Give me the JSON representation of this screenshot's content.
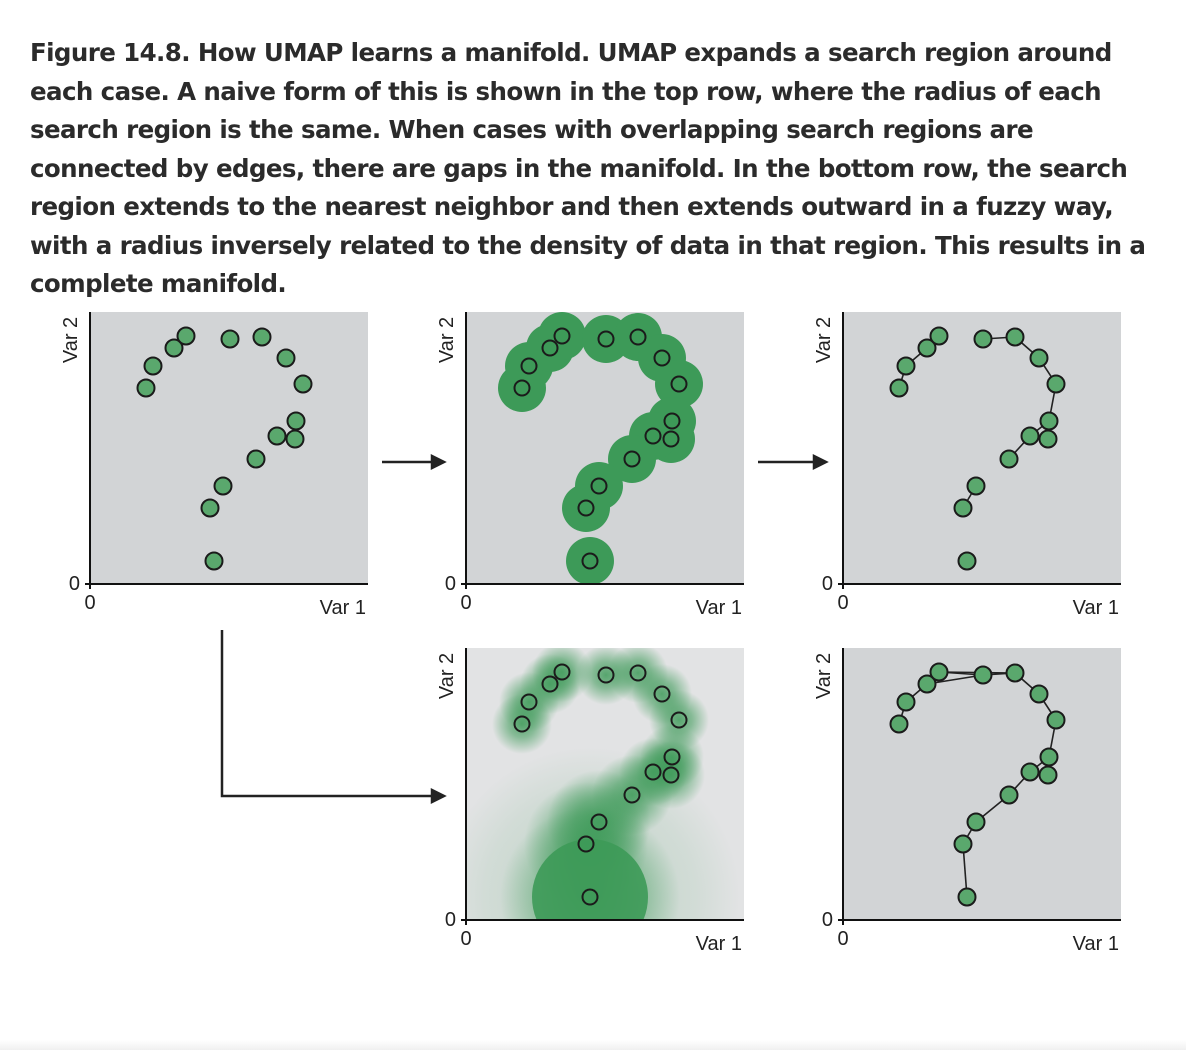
{
  "caption": "Figure 14.8. How UMAP learns a manifold. UMAP expands a search region around each case. A naive form of this is shown in the top row, where the radius of each search region is the same. When cases with overlapping search regions are connected by edges, there are gaps in the manifold. In the bottom row, the search region extends to the nearest neighbor and then extends outward in a fuzzy way, with a radius inversely related to the density of data in that region. This results in a complete manifold.",
  "panel_labels": {
    "x_axis": "Var 1",
    "y_axis": "Var 2",
    "origin_x": "0",
    "origin_y": "0"
  },
  "colors": {
    "panel_background": "#d2d4d6",
    "panel_background_light": "#e2e3e4",
    "point_fill": "#5aa86d",
    "point_stroke": "#1b1b1b",
    "region_green": "#3d9a58",
    "arrow": "#222222"
  }
}
